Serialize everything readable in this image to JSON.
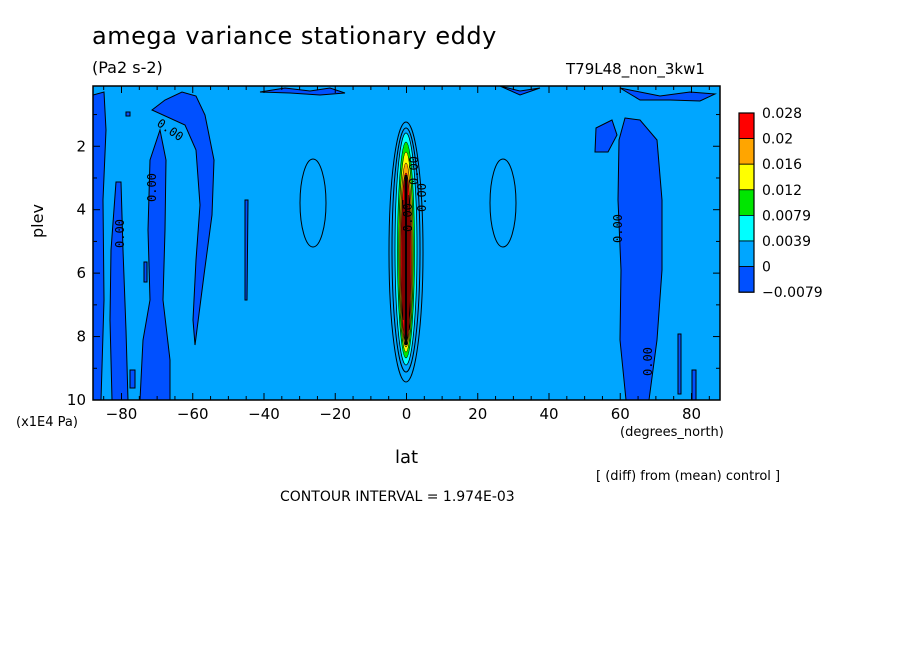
{
  "header": {
    "title": "amega variance stationary eddy",
    "units": "(Pa2 s-2)",
    "run_id": "T79L48_non_3kw1"
  },
  "footer": {
    "diff_note": "[ (diff) from (mean) control ]",
    "contour_interval": "CONTOUR INTERVAL = 1.974E-03"
  },
  "chart_data": {
    "type": "heatmap",
    "title": "amega variance stationary eddy",
    "subtitle": "(Pa2 s-2)",
    "xlabel": "lat",
    "x_unit": "(degrees_north)",
    "ylabel": "plev",
    "y_unit": "(x1E4 Pa)",
    "xlim": [
      -88,
      88
    ],
    "ylim": [
      10,
      0.1
    ],
    "x_ticks": [
      -80,
      -60,
      -40,
      -20,
      0,
      20,
      40,
      60,
      80
    ],
    "x_tick_labels": [
      "−80",
      "−60",
      "−40",
      "−20",
      "0",
      "20",
      "40",
      "60",
      "80"
    ],
    "y_ticks": [
      2,
      4,
      6,
      8,
      10
    ],
    "y_tick_labels": [
      "2",
      "4",
      "6",
      "8",
      "10"
    ],
    "background_level_color": "#00a6ff",
    "legend": {
      "position": "right",
      "colors": [
        "#ff0000",
        "#ffa500",
        "#ffff00",
        "#00e600",
        "#00ffff",
        "#00a6ff",
        "#0050ff"
      ],
      "labels": [
        "0.028",
        "0.02",
        "0.016",
        "0.012",
        "0.0079",
        "0.0039",
        "0",
        "−0.0079"
      ]
    },
    "contour_labels": [
      "0.00"
    ],
    "features": [
      {
        "kind": "negative-region",
        "lat_range": [
          -88,
          -83
        ],
        "plev_range": [
          0.3,
          10
        ]
      },
      {
        "kind": "negative-region",
        "lat_range": [
          -84,
          -71
        ],
        "plev_range": [
          2.0,
          10
        ]
      },
      {
        "kind": "negative-region",
        "lat_range": [
          -70,
          -57
        ],
        "plev_range": [
          0.9,
          8.5
        ]
      },
      {
        "kind": "negative-region",
        "lat_range": [
          -46.5,
          -45.5
        ],
        "plev_range": [
          3.7,
          6.9
        ]
      },
      {
        "kind": "negative-region",
        "lat_range": [
          59,
          71
        ],
        "plev_range": [
          0.9,
          10
        ]
      },
      {
        "kind": "positive-maximum",
        "lat": 0,
        "plev_range": [
          1.2,
          9.5
        ],
        "peak_value": 0.028
      }
    ]
  }
}
